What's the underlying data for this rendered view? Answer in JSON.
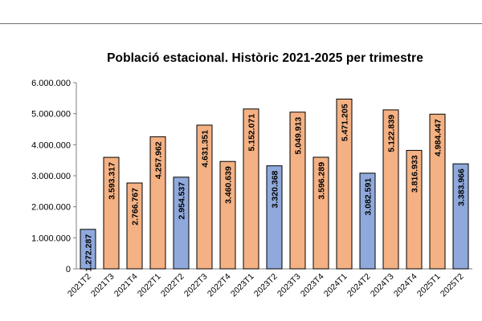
{
  "chart_data": {
    "type": "bar",
    "title": "Població estacional. Històric 2021-2025 per trimestre",
    "xlabel": "",
    "ylabel": "",
    "ylim": [
      0,
      6000000
    ],
    "yticks": [
      0,
      1000000,
      2000000,
      3000000,
      4000000,
      5000000,
      6000000
    ],
    "ytick_labels": [
      "0",
      "1.000.000",
      "2.000.000",
      "3.000.000",
      "4.000.000",
      "5.000.000",
      "6.000.000"
    ],
    "grid": false,
    "legend": "none",
    "colors": {
      "q2": "#8fa9dc",
      "other": "#f4b183",
      "edge": "#000000"
    },
    "categories": [
      "2021T2",
      "2021T3",
      "2021T4",
      "2022T1",
      "2022T2",
      "2022T3",
      "2022T4",
      "2023T1",
      "2023T2",
      "2023T3",
      "2023T4",
      "2024T1",
      "2024T2",
      "2024T3",
      "2024T4",
      "2025T1",
      "2025T2"
    ],
    "values": [
      1272287,
      3593317,
      2766767,
      4257962,
      2954537,
      4631351,
      3460639,
      5152071,
      3320368,
      5049913,
      3596289,
      5471205,
      3082591,
      5122839,
      3816933,
      4984447,
      3383966
    ],
    "value_labels": [
      "1.272.287",
      "3.593.317",
      "2.766.767",
      "4.257.962",
      "2.954.537",
      "4.631.351",
      "3.460.639",
      "5.152.071",
      "3.320.368",
      "5.049.913",
      "3.596.289",
      "5.471.205",
      "3.082.591",
      "5.122.839",
      "3.816.933",
      "4.984.447",
      "3.383.966"
    ]
  }
}
